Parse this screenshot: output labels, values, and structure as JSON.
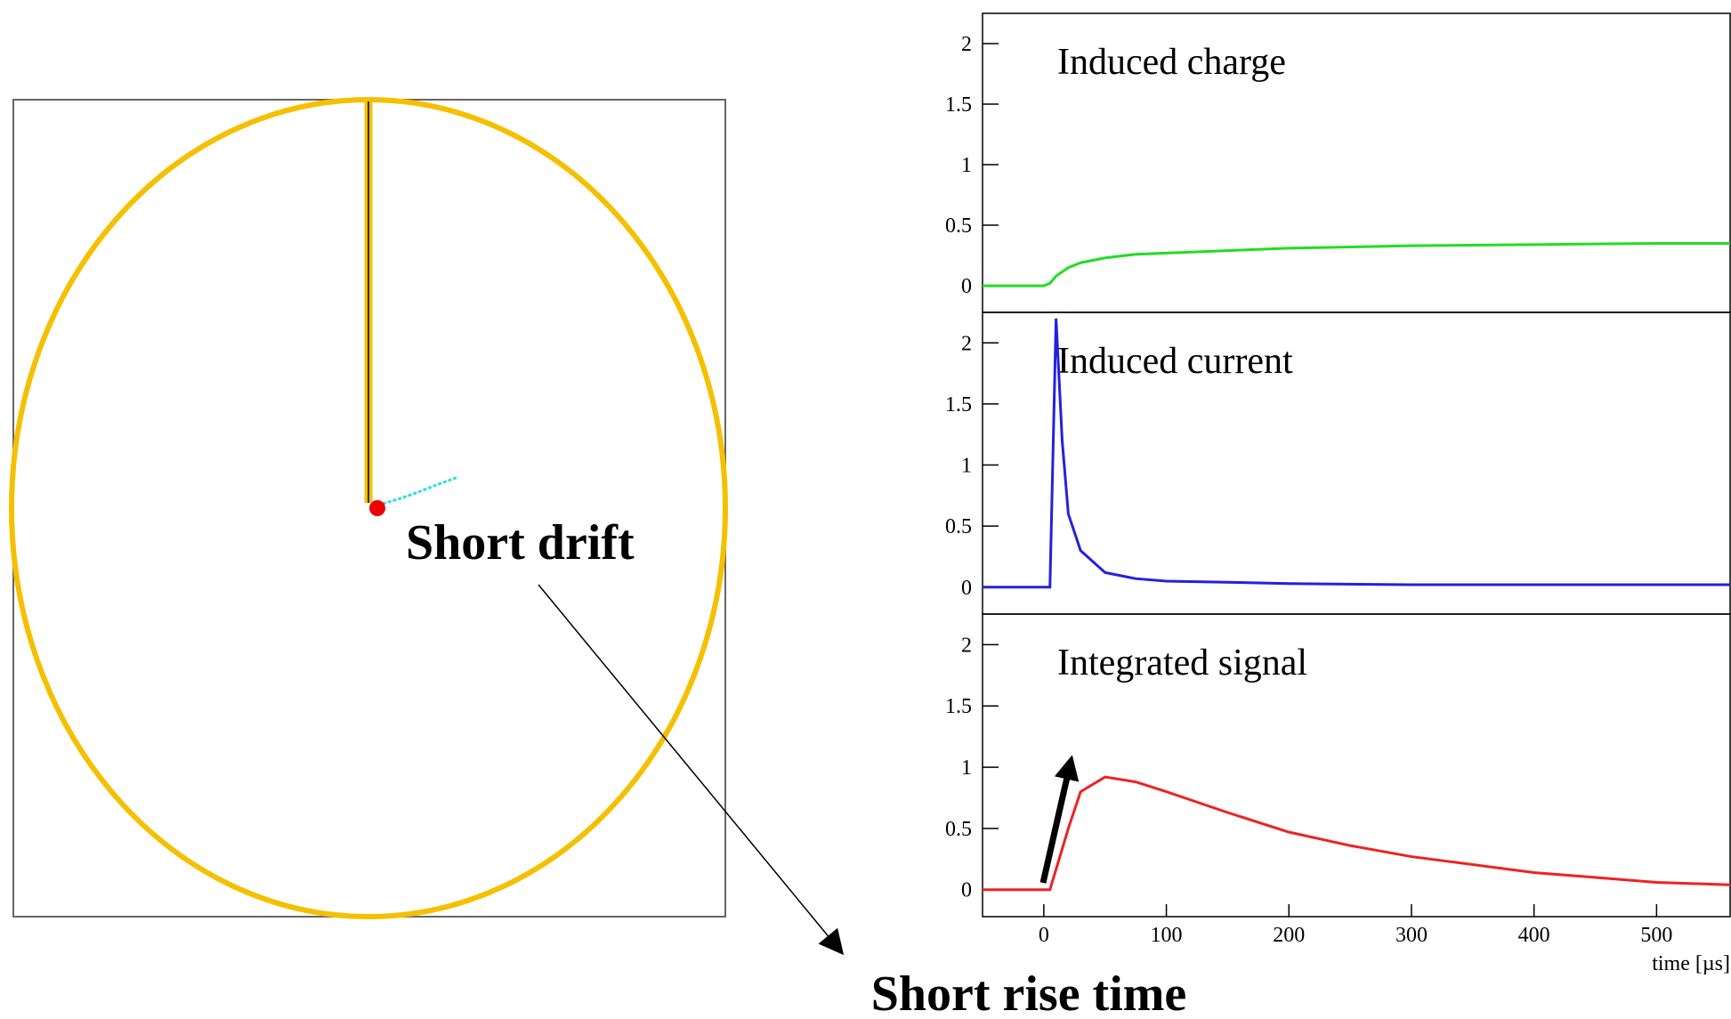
{
  "chart_data": [
    {
      "type": "line",
      "title": "Induced charge",
      "x": [
        -50,
        0,
        5,
        10,
        20,
        30,
        50,
        75,
        100,
        150,
        200,
        300,
        400,
        500,
        560
      ],
      "series": [
        {
          "color": "#22dd22",
          "values": [
            0,
            0,
            0.02,
            0.08,
            0.15,
            0.19,
            0.23,
            0.26,
            0.27,
            0.29,
            0.31,
            0.33,
            0.34,
            0.35,
            0.35
          ]
        }
      ],
      "xlim": [
        -50,
        560
      ],
      "ylim": [
        -0.22,
        2.25
      ],
      "yticks": [
        0,
        0.5,
        1,
        1.5,
        2
      ]
    },
    {
      "type": "line",
      "title": "Induced current",
      "x": [
        -50,
        5,
        10,
        15,
        20,
        30,
        50,
        75,
        100,
        200,
        300,
        560
      ],
      "series": [
        {
          "color": "#2222dd",
          "values": [
            0,
            0,
            2.2,
            1.2,
            0.6,
            0.3,
            0.12,
            0.07,
            0.05,
            0.03,
            0.02,
            0.02
          ]
        }
      ],
      "xlim": [
        -50,
        560
      ],
      "ylim": [
        -0.22,
        2.25
      ],
      "yticks": [
        0,
        0.5,
        1,
        1.5,
        2
      ]
    },
    {
      "type": "line",
      "title": "Integrated signal",
      "xlabel": "time [µs]",
      "x": [
        -50,
        5,
        20,
        30,
        50,
        75,
        100,
        150,
        200,
        250,
        300,
        400,
        500,
        560
      ],
      "series": [
        {
          "color": "#ee2222",
          "values": [
            0,
            0,
            0.5,
            0.8,
            0.92,
            0.88,
            0.8,
            0.63,
            0.47,
            0.36,
            0.27,
            0.14,
            0.06,
            0.04
          ]
        }
      ],
      "xlim": [
        -50,
        560
      ],
      "ylim": [
        -0.22,
        2.25
      ],
      "yticks": [
        0,
        0.5,
        1,
        1.5,
        2
      ],
      "xticks": [
        0,
        100,
        200,
        300,
        400,
        500
      ]
    }
  ],
  "annotations": {
    "drift": "Short drift",
    "rise": "Short rise time"
  }
}
